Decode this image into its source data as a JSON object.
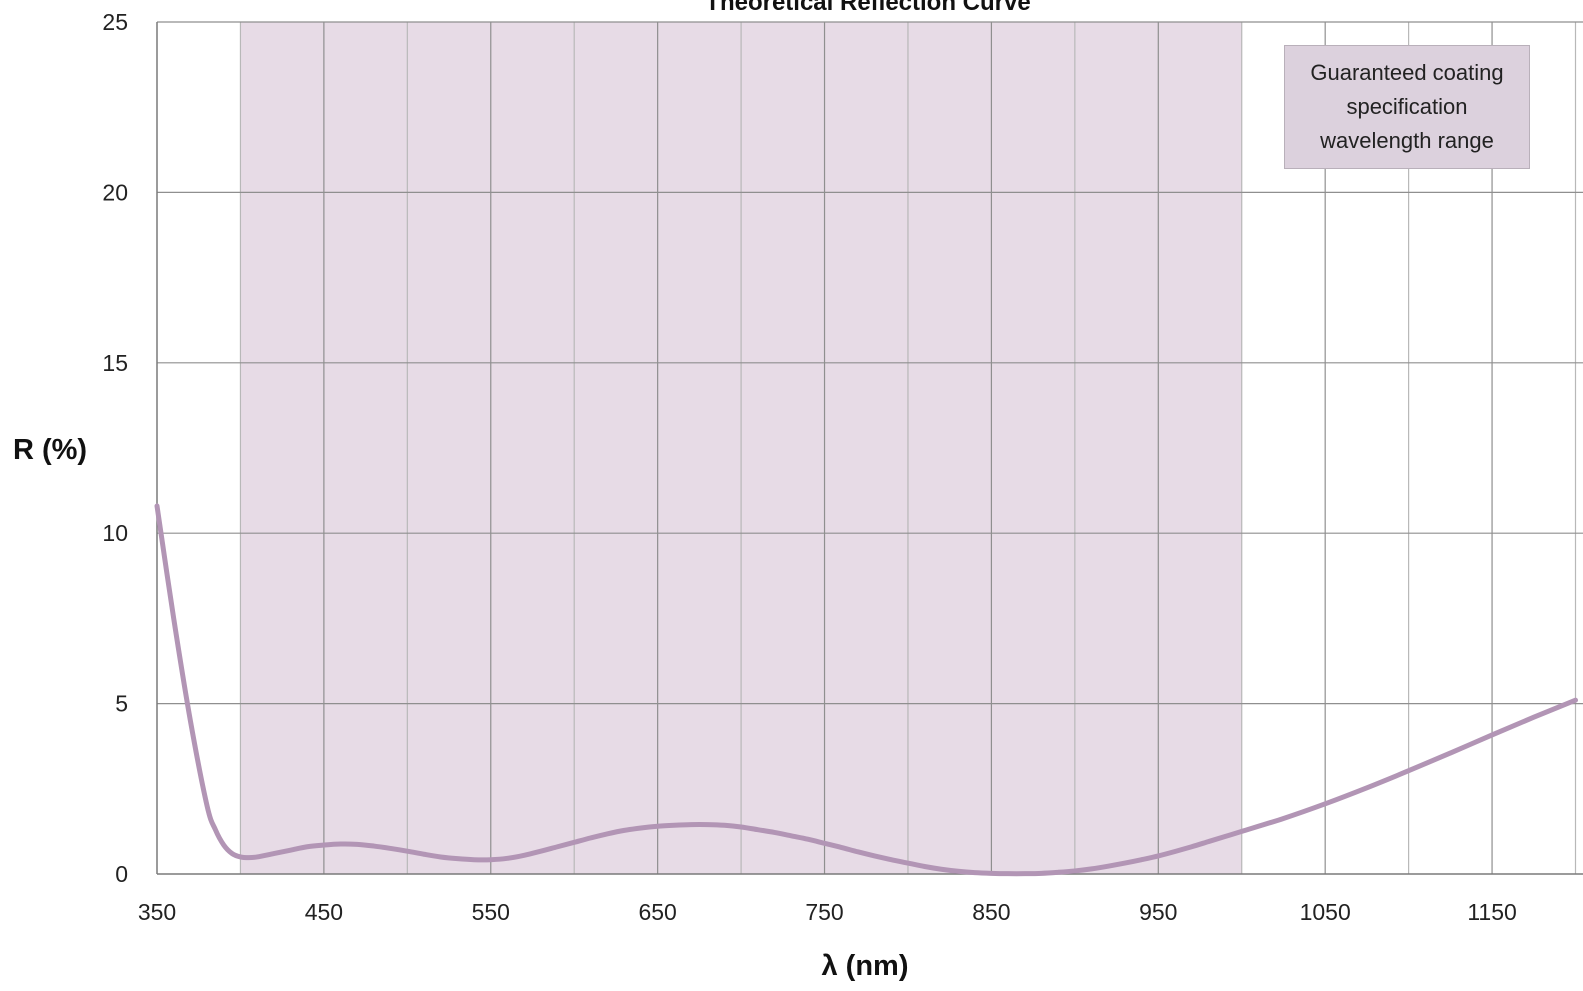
{
  "chart_data": {
    "type": "line",
    "title": "Theoretical Reflection Curve",
    "xlabel": "λ (nm)",
    "ylabel": "R (%)",
    "xlim": [
      350,
      1200
    ],
    "ylim": [
      0,
      25
    ],
    "x_ticks": [
      350,
      450,
      550,
      650,
      750,
      850,
      950,
      1050,
      1150
    ],
    "y_ticks": [
      0,
      5,
      10,
      15,
      20,
      25
    ],
    "x_minor_grid_step": 50,
    "grid": true,
    "shaded_region": {
      "x_range": [
        400,
        1000
      ],
      "label": "Guaranteed coating specification wavelength range",
      "color": "#e7dbe6"
    },
    "legend_placement": "top-right",
    "series": [
      {
        "color": "#b295b5",
        "x": [
          350,
          360,
          370,
          380,
          385,
          390,
          395,
          400,
          405,
          410,
          420,
          430,
          440,
          450,
          460,
          470,
          480,
          490,
          500,
          510,
          520,
          530,
          540,
          550,
          560,
          570,
          580,
          590,
          600,
          610,
          620,
          630,
          640,
          650,
          660,
          670,
          680,
          690,
          700,
          710,
          720,
          730,
          740,
          750,
          760,
          770,
          780,
          790,
          800,
          810,
          820,
          830,
          840,
          850,
          860,
          870,
          880,
          890,
          900,
          910,
          920,
          930,
          940,
          950,
          960,
          970,
          980,
          990,
          1000,
          1025,
          1050,
          1075,
          1100,
          1125,
          1150,
          1175,
          1200
        ],
        "y": [
          10.8,
          7.5,
          4.5,
          2.0,
          1.3,
          0.85,
          0.6,
          0.5,
          0.48,
          0.5,
          0.6,
          0.7,
          0.8,
          0.85,
          0.88,
          0.87,
          0.82,
          0.75,
          0.67,
          0.58,
          0.5,
          0.45,
          0.42,
          0.42,
          0.46,
          0.55,
          0.67,
          0.8,
          0.93,
          1.06,
          1.18,
          1.28,
          1.35,
          1.4,
          1.43,
          1.45,
          1.45,
          1.43,
          1.38,
          1.3,
          1.22,
          1.12,
          1.02,
          0.9,
          0.78,
          0.65,
          0.53,
          0.42,
          0.32,
          0.22,
          0.14,
          0.08,
          0.04,
          0.02,
          0.01,
          0.01,
          0.02,
          0.05,
          0.09,
          0.15,
          0.23,
          0.32,
          0.42,
          0.53,
          0.66,
          0.8,
          0.95,
          1.1,
          1.25,
          1.63,
          2.06,
          2.53,
          3.03,
          3.55,
          4.08,
          4.6,
          5.1
        ]
      }
    ]
  }
}
